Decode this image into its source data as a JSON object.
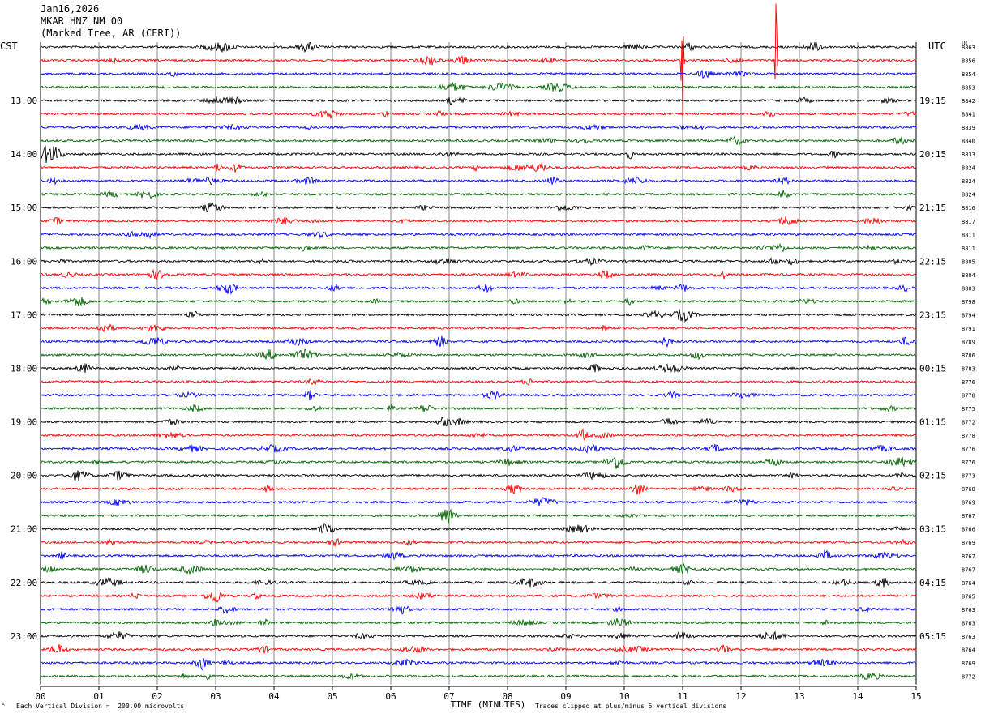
{
  "header": {
    "date": "Jan16,2026",
    "station": "MKAR HNZ NM 00",
    "location": "(Marked Tree, AR (CERI))"
  },
  "left_zone": "CST",
  "right_zone": "UTC",
  "dc_label": "DC",
  "footer": {
    "scale_note": "Each Vertical Division =  200.00 microvolts",
    "clip_note": "Traces clipped at plus/minus 5 vertical divisions"
  },
  "chart_data": {
    "type": "line",
    "title": "MKAR HNZ NM 00",
    "xlabel": "TIME (MINUTES)",
    "ylabel": "",
    "xlim": [
      0,
      15
    ],
    "x_ticks": [
      "00",
      "01",
      "02",
      "03",
      "04",
      "05",
      "06",
      "07",
      "08",
      "09",
      "10",
      "11",
      "12",
      "13",
      "14",
      "15"
    ],
    "left_hour_labels": [
      "13:00",
      "14:00",
      "15:00",
      "16:00",
      "17:00",
      "18:00",
      "19:00",
      "20:00",
      "21:00",
      "22:00",
      "23:00"
    ],
    "right_hour_labels": [
      "19:15",
      "20:15",
      "21:15",
      "22:15",
      "23:15",
      "00:15",
      "01:15",
      "02:15",
      "03:15",
      "04:15",
      "05:15"
    ],
    "trace_colors": [
      "#000000",
      "#ff0000",
      "#0000ff",
      "#006400"
    ],
    "dc_offsets": [
      "8863",
      "8856",
      "8854",
      "8853",
      "8842",
      "8841",
      "8839",
      "8840",
      "8833",
      "8824",
      "8824",
      "8824",
      "8816",
      "8817",
      "8811",
      "8811",
      "8805",
      "8804",
      "8803",
      "8798",
      "8794",
      "8791",
      "8789",
      "8786",
      "8783",
      "8776",
      "8778",
      "8775",
      "8772",
      "8778",
      "8776",
      "8776",
      "8773",
      "8768",
      "8769",
      "8767",
      "8766",
      "8769",
      "8767",
      "8767",
      "8764",
      "8765",
      "8763",
      "8763",
      "8763",
      "8764",
      "8769",
      "8772"
    ],
    "events": [
      {
        "trace": 1,
        "minute": 11.0,
        "type": "clipped spike"
      },
      {
        "trace": 1,
        "minute": 12.6,
        "type": "clipped spike"
      },
      {
        "trace": 8,
        "minute": 0.15,
        "type": "burst"
      }
    ],
    "grid": true
  }
}
